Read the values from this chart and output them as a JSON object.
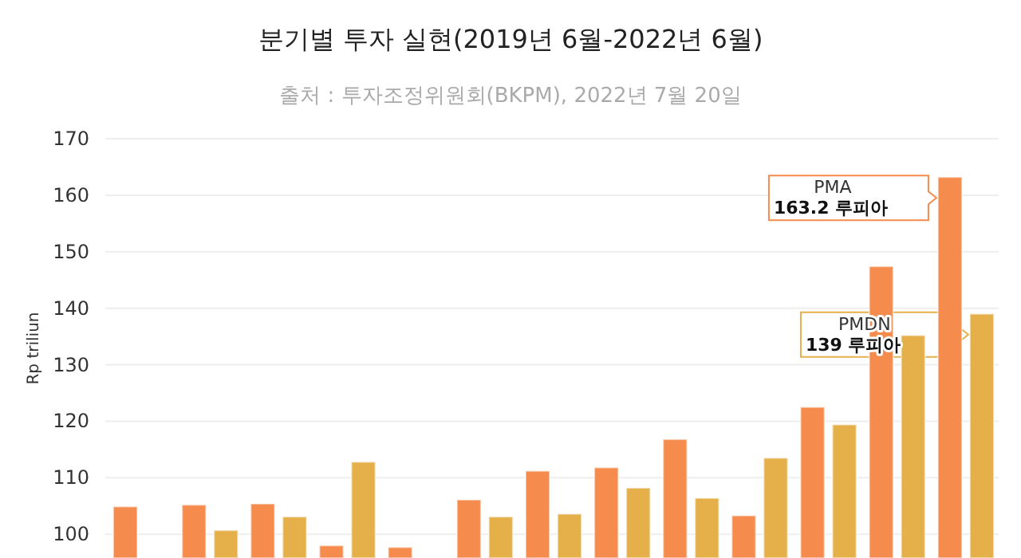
{
  "chart_data": {
    "type": "bar",
    "title": "분기별 투자 실현(2019년 6월-2022년 6월)",
    "subtitle": "출처 : 투자조정위원회(BKPM), 2022년 7월 20일",
    "ylabel": "Rp triliun",
    "categories": [
      null,
      null,
      null,
      null,
      null,
      null,
      null,
      null,
      null,
      null,
      null,
      null,
      null
    ],
    "series": [
      {
        "name": "PMA",
        "color": "#f58b4c",
        "values": [
          104.9,
          105.2,
          105.4,
          98.0,
          97.7,
          106.1,
          111.2,
          111.8,
          116.8,
          103.3,
          122.5,
          147.4,
          163.2
        ]
      },
      {
        "name": "PMDN",
        "color": "#e5b04a",
        "values": [
          null,
          100.7,
          103.1,
          112.8,
          null,
          103.1,
          103.6,
          108.2,
          106.4,
          113.5,
          119.4,
          135.2,
          139
        ]
      }
    ],
    "ylim": [
      95.8,
      170
    ],
    "yticks": [
      100,
      110,
      120,
      130,
      140,
      150,
      160,
      170
    ],
    "grid": "y",
    "annotations": [
      "163.2 루피아",
      "139 루피아"
    ]
  }
}
